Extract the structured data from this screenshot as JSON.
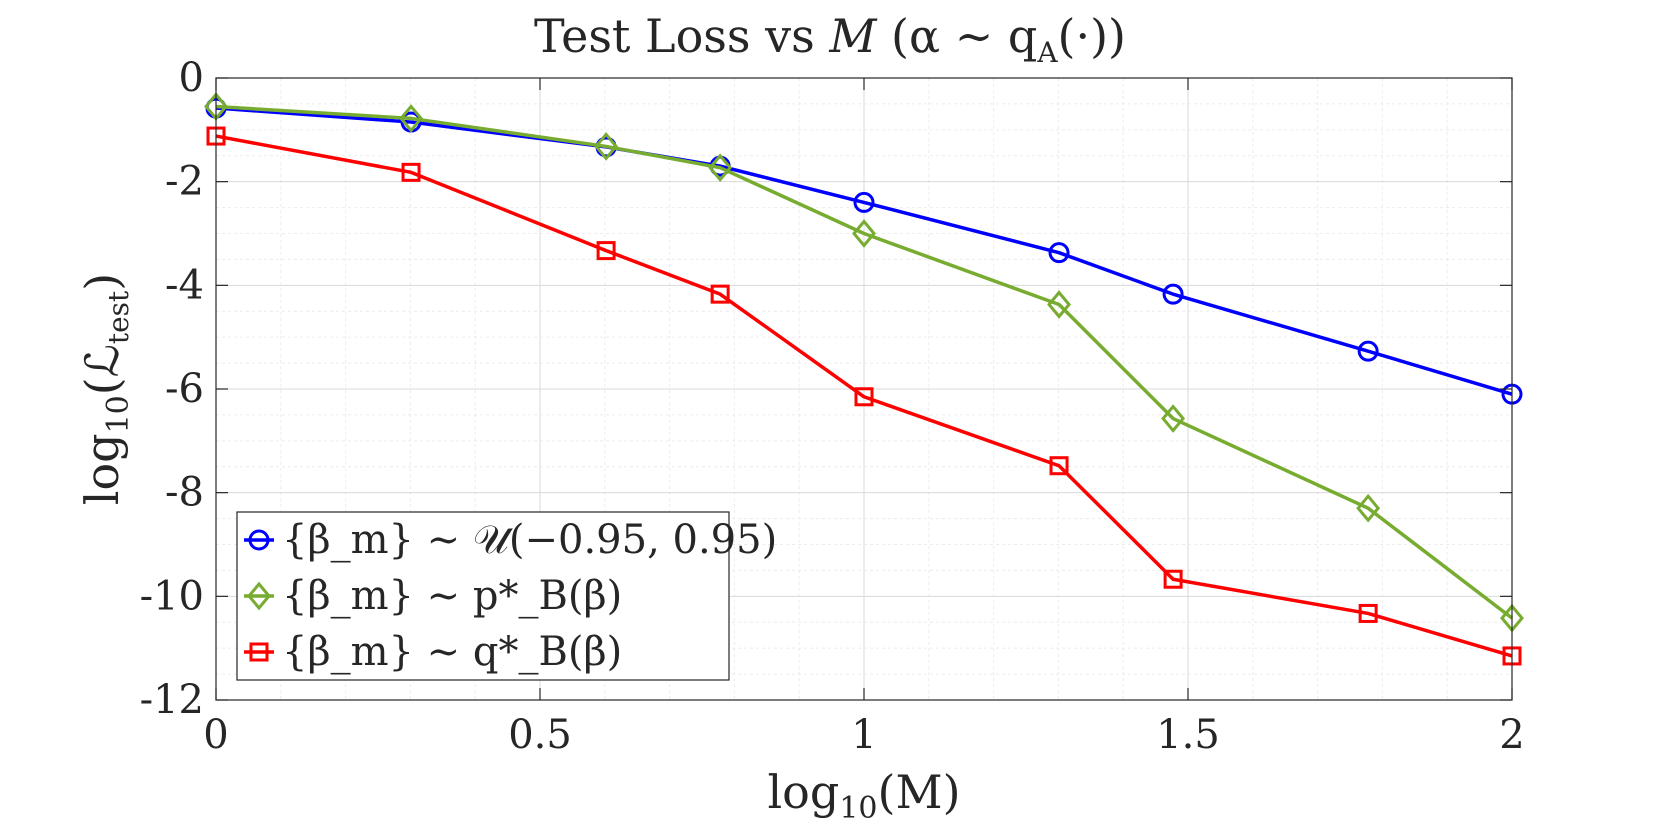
{
  "chart_data": {
    "type": "line",
    "title": "Test Loss vs M (α ∼ q_A(·))",
    "title_parts": {
      "main": "Test Loss vs ",
      "var": "M",
      "paren_open": " (α ∼ q",
      "sub": "A",
      "paren_close": "(·))"
    },
    "xlabel": "log10(M)",
    "xlabel_parts": {
      "fn": "log",
      "sub": "10",
      "arg": "(M)"
    },
    "ylabel": "log10(L_test)",
    "ylabel_parts": {
      "fn": "log",
      "sub": "10",
      "arg_open": "(ℒ",
      "arg_sub": "test",
      "arg_close": ")"
    },
    "xlim": [
      0,
      2
    ],
    "ylim": [
      -12,
      0
    ],
    "xticks": [
      0,
      0.5,
      1,
      1.5,
      2
    ],
    "xtick_labels": [
      "0",
      "0.5",
      "1",
      "1.5",
      "2"
    ],
    "yticks": [
      0,
      -2,
      -4,
      -6,
      -8,
      -10,
      -12
    ],
    "ytick_labels": [
      "0",
      "-2",
      "-4",
      "-6",
      "-8",
      "-10",
      "-12"
    ],
    "grid": true,
    "legend_position": "bottom-left",
    "x": [
      0,
      0.301,
      0.602,
      0.778,
      1.0,
      1.301,
      1.477,
      1.778,
      2.0
    ],
    "series": [
      {
        "name": "{β_m} ∼ 𝒰(−0.95, 0.95)",
        "label": "{β_m} ∼ 𝒰(−0.95, 0.95)",
        "color": "#0000ff",
        "marker": "circle",
        "values": [
          -0.58,
          -0.85,
          -1.33,
          -1.7,
          -2.4,
          -3.37,
          -4.17,
          -5.27,
          -6.1
        ]
      },
      {
        "name": "{β_m} ∼ p*_B(β)",
        "label": "{β_m} ∼ p*_B(β)",
        "color": "#77ac30",
        "marker": "diamond",
        "values": [
          -0.55,
          -0.78,
          -1.32,
          -1.73,
          -3.0,
          -4.37,
          -6.57,
          -8.3,
          -10.42
        ]
      },
      {
        "name": "{β_m} ∼ q*_B(β)",
        "label": "{β_m} ∼ q*_B(β)",
        "color": "#ff0000",
        "marker": "square",
        "values": [
          -1.12,
          -1.82,
          -3.33,
          -4.17,
          -6.15,
          -7.48,
          -9.67,
          -10.33,
          -11.15
        ]
      }
    ]
  }
}
